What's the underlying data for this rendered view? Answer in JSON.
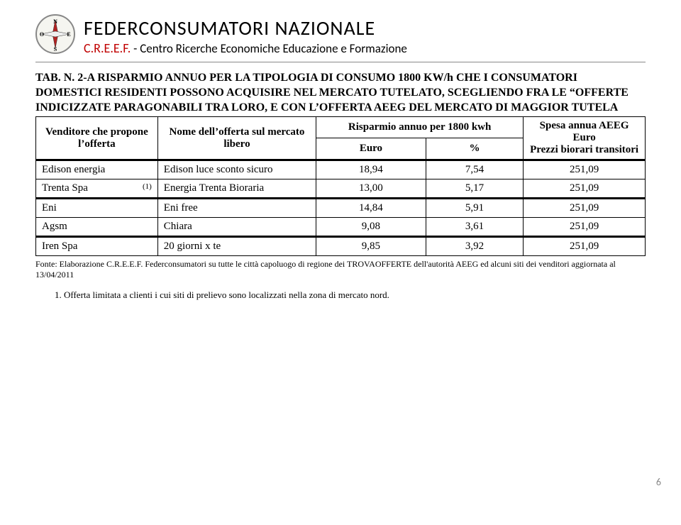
{
  "header": {
    "org_title": "FEDERCONSUMATORI  NAZIONALE",
    "acronym": "C.R.E.E.F.",
    "subtitle": " - Centro Ricerche Economiche Educazione e Formazione",
    "compass_letters": {
      "n": "N",
      "s": "S",
      "e": "E",
      "w": "O"
    }
  },
  "table_header": {
    "prefix": "TAB. N. 2-A RISPARMIO ANNUO PER LA TIPOLOGIA DI CONSUMO 1800 KW/h CHE I CONSUMATORI DOMESTICI RESIDENTI POSSONO ACQUISIRE NEL  MERCATO TUTELATO, SCEGLIENDO FRA LE “OFFERTE INDICIZZATE PARAGONABILI TRA LORO, E CON L’OFFERTA AEEG DEL MERCATO DI MAGGIOR TUTELA",
    "col1": "Venditore che propone l’offerta",
    "col2": "Nome dell’offerta sul mercato libero",
    "col3": "Risparmio annuo per 1800 kwh",
    "col3a": "Euro",
    "col3b": "%",
    "col4": "Spesa annua AEEG Euro",
    "col4_sub": "Prezzi biorari transitori"
  },
  "rows1": [
    {
      "seller": "Edison energia",
      "note": "",
      "offer": "Edison luce sconto sicuro",
      "euro": "18,94",
      "pct": "7,54",
      "aeeg": "251,09"
    },
    {
      "seller": "Trenta Spa",
      "note": "(1)",
      "offer": "Energia Trenta Bioraria",
      "euro": "13,00",
      "pct": "5,17",
      "aeeg": "251,09"
    }
  ],
  "rows2": [
    {
      "seller": "Eni",
      "note": "",
      "offer": "Eni free",
      "euro": "14,84",
      "pct": "5,91",
      "aeeg": "251,09"
    },
    {
      "seller": "Agsm",
      "note": "",
      "offer": "Chiara",
      "euro": "9,08",
      "pct": "3,61",
      "aeeg": "251,09"
    }
  ],
  "rows3": [
    {
      "seller": "Iren Spa",
      "note": "",
      "offer": "20 giorni x te",
      "euro": "9,85",
      "pct": "3,92",
      "aeeg": "251,09"
    }
  ],
  "source_note": "Fonte: Elaborazione C.R.E.E.F. Federconsumatori su  tutte le città capoluogo di regione dei TROVAOFFERTE dell'autorità AEEG ed alcuni siti dei venditori aggiornata al 13/04/2011",
  "footnote_1": "Offerta limitata a clienti i cui siti di prelievo sono localizzati nella zona di mercato nord.",
  "footnote_1_num": "1.",
  "page_number": "6",
  "column_widths": {
    "c1": "20%",
    "c2": "26%",
    "c3": "18%",
    "c4": "16%",
    "c5": "20%"
  },
  "colors": {
    "acronym": "#c00000",
    "needle": "#b22222",
    "page_num": "#888888",
    "border": "#000000"
  }
}
